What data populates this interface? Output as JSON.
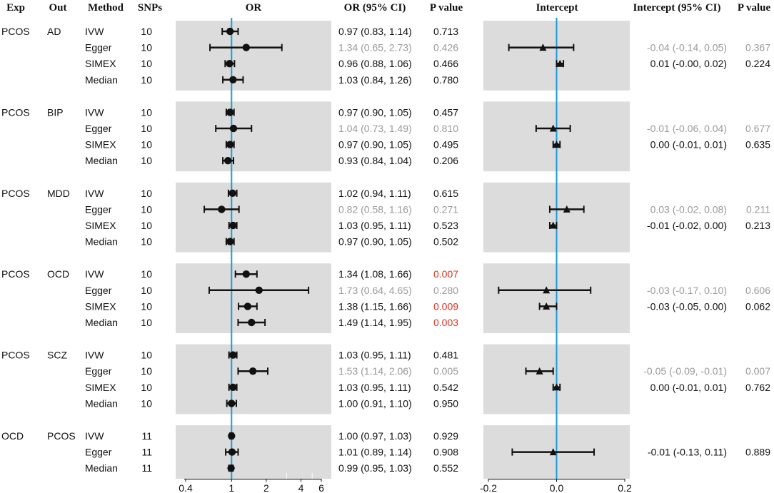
{
  "headers": {
    "exp": "Exp",
    "out": "Out",
    "method": "Method",
    "snps": "SNPs",
    "or": "OR",
    "or_ci": "OR (95% CI)",
    "p_value": "P value",
    "intercept": "Intercept",
    "intercept_ci": "Intercept (95% CI)",
    "intercept_p": "P value"
  },
  "colors": {
    "panel": "#dcdcdc",
    "refline": "#1f9bd7",
    "significant": "#e0301e",
    "muted": "#9a9a9a",
    "marker": "#111111"
  },
  "chart_data": [
    {
      "type": "forest",
      "title": "OR",
      "scale": "log",
      "xlim": [
        0.4,
        6
      ],
      "reference": 1,
      "ticks": [
        0.4,
        1,
        2,
        4,
        6
      ],
      "tick_labels": [
        "0.4",
        "1",
        "2",
        "4",
        "6"
      ],
      "minor_ticks": [
        3,
        5
      ],
      "marker": "circle",
      "groups": [
        {
          "exp": "PCOS",
          "out": "AD",
          "rows": [
            {
              "method": "IVW",
              "snps": 10,
              "or": 0.97,
              "lo": 0.83,
              "hi": 1.14,
              "or_ci": "0.97 (0.83, 1.14)",
              "p": "0.713",
              "p_style": "normal",
              "ci_style": "normal"
            },
            {
              "method": "Egger",
              "snps": 10,
              "or": 1.34,
              "lo": 0.65,
              "hi": 2.73,
              "or_ci": "1.34 (0.65, 2.73)",
              "p": "0.426",
              "p_style": "muted",
              "ci_style": "muted"
            },
            {
              "method": "SIMEX",
              "snps": 10,
              "or": 0.96,
              "lo": 0.88,
              "hi": 1.06,
              "or_ci": "0.96 (0.88, 1.06)",
              "p": "0.466",
              "p_style": "normal",
              "ci_style": "normal"
            },
            {
              "method": "Median",
              "snps": 10,
              "or": 1.03,
              "lo": 0.84,
              "hi": 1.26,
              "or_ci": "1.03 (0.84, 1.26)",
              "p": "0.780",
              "p_style": "normal",
              "ci_style": "normal"
            }
          ]
        },
        {
          "exp": "PCOS",
          "out": "BIP",
          "rows": [
            {
              "method": "IVW",
              "snps": 10,
              "or": 0.97,
              "lo": 0.9,
              "hi": 1.05,
              "or_ci": "0.97 (0.90, 1.05)",
              "p": "0.457",
              "p_style": "normal",
              "ci_style": "normal"
            },
            {
              "method": "Egger",
              "snps": 10,
              "or": 1.04,
              "lo": 0.73,
              "hi": 1.49,
              "or_ci": "1.04 (0.73, 1.49)",
              "p": "0.810",
              "p_style": "muted",
              "ci_style": "muted"
            },
            {
              "method": "SIMEX",
              "snps": 10,
              "or": 0.97,
              "lo": 0.9,
              "hi": 1.05,
              "or_ci": "0.97 (0.90, 1.05)",
              "p": "0.495",
              "p_style": "normal",
              "ci_style": "normal"
            },
            {
              "method": "Median",
              "snps": 10,
              "or": 0.93,
              "lo": 0.84,
              "hi": 1.04,
              "or_ci": "0.93 (0.84, 1.04)",
              "p": "0.206",
              "p_style": "normal",
              "ci_style": "normal"
            }
          ]
        },
        {
          "exp": "PCOS",
          "out": "MDD",
          "rows": [
            {
              "method": "IVW",
              "snps": 10,
              "or": 1.02,
              "lo": 0.94,
              "hi": 1.11,
              "or_ci": "1.02 (0.94, 1.11)",
              "p": "0.615",
              "p_style": "normal",
              "ci_style": "normal"
            },
            {
              "method": "Egger",
              "snps": 10,
              "or": 0.82,
              "lo": 0.58,
              "hi": 1.16,
              "or_ci": "0.82 (0.58, 1.16)",
              "p": "0.271",
              "p_style": "muted",
              "ci_style": "muted"
            },
            {
              "method": "SIMEX",
              "snps": 10,
              "or": 1.03,
              "lo": 0.95,
              "hi": 1.11,
              "or_ci": "1.03 (0.95, 1.11)",
              "p": "0.523",
              "p_style": "normal",
              "ci_style": "normal"
            },
            {
              "method": "Median",
              "snps": 10,
              "or": 0.97,
              "lo": 0.9,
              "hi": 1.05,
              "or_ci": "0.97 (0.90, 1.05)",
              "p": "0.502",
              "p_style": "normal",
              "ci_style": "normal"
            }
          ]
        },
        {
          "exp": "PCOS",
          "out": "OCD",
          "rows": [
            {
              "method": "IVW",
              "snps": 10,
              "or": 1.34,
              "lo": 1.08,
              "hi": 1.66,
              "or_ci": "1.34 (1.08, 1.66)",
              "p": "0.007",
              "p_style": "significant",
              "ci_style": "normal"
            },
            {
              "method": "Egger",
              "snps": 10,
              "or": 1.73,
              "lo": 0.64,
              "hi": 4.65,
              "or_ci": "1.73 (0.64, 4.65)",
              "p": "0.280",
              "p_style": "muted",
              "ci_style": "muted"
            },
            {
              "method": "SIMEX",
              "snps": 10,
              "or": 1.38,
              "lo": 1.15,
              "hi": 1.66,
              "or_ci": "1.38 (1.15, 1.66)",
              "p": "0.009",
              "p_style": "significant",
              "ci_style": "normal"
            },
            {
              "method": "Median",
              "snps": 10,
              "or": 1.49,
              "lo": 1.14,
              "hi": 1.95,
              "or_ci": "1.49 (1.14, 1.95)",
              "p": "0.003",
              "p_style": "significant",
              "ci_style": "normal"
            }
          ]
        },
        {
          "exp": "PCOS",
          "out": "SCZ",
          "rows": [
            {
              "method": "IVW",
              "snps": 10,
              "or": 1.03,
              "lo": 0.95,
              "hi": 1.11,
              "or_ci": "1.03 (0.95, 1.11)",
              "p": "0.481",
              "p_style": "normal",
              "ci_style": "normal"
            },
            {
              "method": "Egger",
              "snps": 10,
              "or": 1.53,
              "lo": 1.14,
              "hi": 2.06,
              "or_ci": "1.53 (1.14, 2.06)",
              "p": "0.005",
              "p_style": "muted",
              "ci_style": "muted"
            },
            {
              "method": "SIMEX",
              "snps": 10,
              "or": 1.03,
              "lo": 0.95,
              "hi": 1.11,
              "or_ci": "1.03 (0.95, 1.11)",
              "p": "0.542",
              "p_style": "normal",
              "ci_style": "normal"
            },
            {
              "method": "Median",
              "snps": 10,
              "or": 1.0,
              "lo": 0.91,
              "hi": 1.1,
              "or_ci": "1.00 (0.91, 1.10)",
              "p": "0.950",
              "p_style": "normal",
              "ci_style": "normal"
            }
          ]
        },
        {
          "exp": "OCD",
          "out": "PCOS",
          "rows": [
            {
              "method": "IVW",
              "snps": 11,
              "or": 1.0,
              "lo": 0.97,
              "hi": 1.03,
              "or_ci": "1.00 (0.97, 1.03)",
              "p": "0.929",
              "p_style": "normal",
              "ci_style": "normal"
            },
            {
              "method": "Egger",
              "snps": 11,
              "or": 1.01,
              "lo": 0.89,
              "hi": 1.14,
              "or_ci": "1.01 (0.89, 1.14)",
              "p": "0.908",
              "p_style": "normal",
              "ci_style": "normal"
            },
            {
              "method": "Median",
              "snps": 11,
              "or": 0.99,
              "lo": 0.95,
              "hi": 1.03,
              "or_ci": "0.99 (0.95, 1.03)",
              "p": "0.552",
              "p_style": "normal",
              "ci_style": "normal"
            }
          ]
        }
      ]
    },
    {
      "type": "forest",
      "title": "Intercept",
      "scale": "linear",
      "xlim": [
        -0.2,
        0.2
      ],
      "reference": 0,
      "ticks": [
        -0.2,
        0.0,
        0.2
      ],
      "tick_labels": [
        "-0.2",
        "0.0",
        "0.2"
      ],
      "marker": "triangle",
      "rows": [
        {
          "group": "PCOS-AD",
          "method": "Egger",
          "intercept": -0.04,
          "lo": -0.14,
          "hi": 0.05,
          "ci": "-0.04 (-0.14, 0.05)",
          "p": "0.367",
          "style": "muted"
        },
        {
          "group": "PCOS-AD",
          "method": "SIMEX",
          "intercept": 0.01,
          "lo": -0.0,
          "hi": 0.02,
          "ci": "0.01 (-0.00, 0.02)",
          "p": "0.224",
          "style": "normal"
        },
        {
          "group": "PCOS-BIP",
          "method": "Egger",
          "intercept": -0.01,
          "lo": -0.06,
          "hi": 0.04,
          "ci": "-0.01 (-0.06, 0.04)",
          "p": "0.677",
          "style": "muted"
        },
        {
          "group": "PCOS-BIP",
          "method": "SIMEX",
          "intercept": 0.0,
          "lo": -0.01,
          "hi": 0.01,
          "ci": "0.00 (-0.01, 0.01)",
          "p": "0.635",
          "style": "normal"
        },
        {
          "group": "PCOS-MDD",
          "method": "Egger",
          "intercept": 0.03,
          "lo": -0.02,
          "hi": 0.08,
          "ci": "0.03 (-0.02, 0.08)",
          "p": "0.211",
          "style": "muted"
        },
        {
          "group": "PCOS-MDD",
          "method": "SIMEX",
          "intercept": -0.01,
          "lo": -0.02,
          "hi": 0.0,
          "ci": "-0.01 (-0.02, 0.00)",
          "p": "0.213",
          "style": "normal"
        },
        {
          "group": "PCOS-OCD",
          "method": "Egger",
          "intercept": -0.03,
          "lo": -0.17,
          "hi": 0.1,
          "ci": "-0.03 (-0.17, 0.10)",
          "p": "0.606",
          "style": "muted"
        },
        {
          "group": "PCOS-OCD",
          "method": "SIMEX",
          "intercept": -0.03,
          "lo": -0.05,
          "hi": 0.0,
          "ci": "-0.03 (-0.05, 0.00)",
          "p": "0.062",
          "style": "normal"
        },
        {
          "group": "PCOS-SCZ",
          "method": "Egger",
          "intercept": -0.05,
          "lo": -0.09,
          "hi": -0.01,
          "ci": "-0.05 (-0.09, -0.01)",
          "p": "0.007",
          "style": "muted"
        },
        {
          "group": "PCOS-SCZ",
          "method": "SIMEX",
          "intercept": 0.0,
          "lo": -0.01,
          "hi": 0.01,
          "ci": "0.00 (-0.01, 0.01)",
          "p": "0.762",
          "style": "normal"
        },
        {
          "group": "OCD-PCOS",
          "method": "Egger",
          "intercept": -0.01,
          "lo": -0.13,
          "hi": 0.11,
          "ci": "-0.01 (-0.13, 0.11)",
          "p": "0.889",
          "style": "normal"
        }
      ]
    }
  ]
}
